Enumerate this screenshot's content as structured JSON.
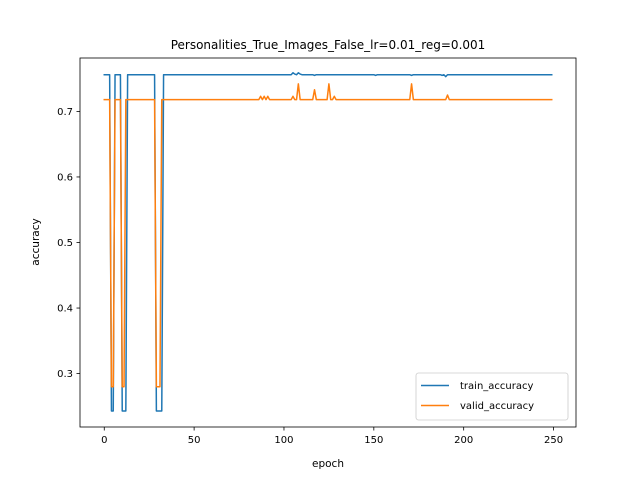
{
  "chart_data": {
    "type": "line",
    "title": "Personalities_True_Images_False_lr=0.01_reg=0.001",
    "xlabel": "epoch",
    "ylabel": "accuracy",
    "xlim": [
      -13.5,
      262.5
    ],
    "ylim": [
      0.2185,
      0.7815
    ],
    "xticks": [
      0,
      50,
      100,
      150,
      200,
      250
    ],
    "yticks": [
      0.3,
      0.4,
      0.5,
      0.6,
      0.7
    ],
    "grid": false,
    "legend_position": "lower-right",
    "series": [
      {
        "name": "train_accuracy",
        "color": "#1f77b4",
        "points": [
          [
            0,
            0.756
          ],
          [
            1,
            0.756
          ],
          [
            2,
            0.756
          ],
          [
            3,
            0.756
          ],
          [
            4,
            0.243
          ],
          [
            5,
            0.243
          ],
          [
            6,
            0.756
          ],
          [
            7,
            0.756
          ],
          [
            8,
            0.756
          ],
          [
            9,
            0.756
          ],
          [
            10,
            0.243
          ],
          [
            11,
            0.243
          ],
          [
            12,
            0.243
          ],
          [
            13,
            0.756
          ],
          [
            14,
            0.756
          ],
          [
            20,
            0.756
          ],
          [
            27,
            0.756
          ],
          [
            28,
            0.756
          ],
          [
            29,
            0.243
          ],
          [
            30,
            0.243
          ],
          [
            31,
            0.243
          ],
          [
            32,
            0.243
          ],
          [
            33,
            0.756
          ],
          [
            34,
            0.756
          ],
          [
            60,
            0.756
          ],
          [
            100,
            0.756
          ],
          [
            104,
            0.756
          ],
          [
            105,
            0.759
          ],
          [
            106,
            0.757
          ],
          [
            107,
            0.756
          ],
          [
            108,
            0.759
          ],
          [
            109,
            0.757
          ],
          [
            110,
            0.756
          ],
          [
            116,
            0.756
          ],
          [
            117,
            0.755
          ],
          [
            118,
            0.756
          ],
          [
            130,
            0.756
          ],
          [
            150,
            0.756
          ],
          [
            151,
            0.755
          ],
          [
            152,
            0.756
          ],
          [
            170,
            0.756
          ],
          [
            171,
            0.755
          ],
          [
            172,
            0.756
          ],
          [
            187,
            0.756
          ],
          [
            188,
            0.755
          ],
          [
            189,
            0.756
          ],
          [
            190,
            0.753
          ],
          [
            191,
            0.756
          ],
          [
            192,
            0.756
          ],
          [
            249,
            0.756
          ]
        ]
      },
      {
        "name": "valid_accuracy",
        "color": "#ff7f0e",
        "points": [
          [
            0,
            0.718
          ],
          [
            1,
            0.718
          ],
          [
            2,
            0.718
          ],
          [
            3,
            0.718
          ],
          [
            4,
            0.28
          ],
          [
            5,
            0.28
          ],
          [
            6,
            0.718
          ],
          [
            7,
            0.718
          ],
          [
            8,
            0.718
          ],
          [
            9,
            0.718
          ],
          [
            10,
            0.28
          ],
          [
            11,
            0.28
          ],
          [
            12,
            0.718
          ],
          [
            13,
            0.718
          ],
          [
            20,
            0.718
          ],
          [
            27,
            0.718
          ],
          [
            28,
            0.718
          ],
          [
            29,
            0.28
          ],
          [
            30,
            0.28
          ],
          [
            31,
            0.28
          ],
          [
            32,
            0.718
          ],
          [
            33,
            0.718
          ],
          [
            60,
            0.718
          ],
          [
            86,
            0.718
          ],
          [
            87,
            0.723
          ],
          [
            88,
            0.718
          ],
          [
            89,
            0.723
          ],
          [
            90,
            0.718
          ],
          [
            91,
            0.723
          ],
          [
            92,
            0.718
          ],
          [
            104,
            0.718
          ],
          [
            105,
            0.723
          ],
          [
            106,
            0.718
          ],
          [
            107,
            0.718
          ],
          [
            108,
            0.742
          ],
          [
            109,
            0.718
          ],
          [
            116,
            0.718
          ],
          [
            117,
            0.733
          ],
          [
            118,
            0.718
          ],
          [
            124,
            0.718
          ],
          [
            125,
            0.742
          ],
          [
            126,
            0.718
          ],
          [
            127,
            0.718
          ],
          [
            128,
            0.723
          ],
          [
            129,
            0.718
          ],
          [
            150,
            0.718
          ],
          [
            170,
            0.718
          ],
          [
            171,
            0.742
          ],
          [
            172,
            0.718
          ],
          [
            190,
            0.718
          ],
          [
            191,
            0.725
          ],
          [
            192,
            0.718
          ],
          [
            249,
            0.718
          ]
        ]
      }
    ]
  }
}
